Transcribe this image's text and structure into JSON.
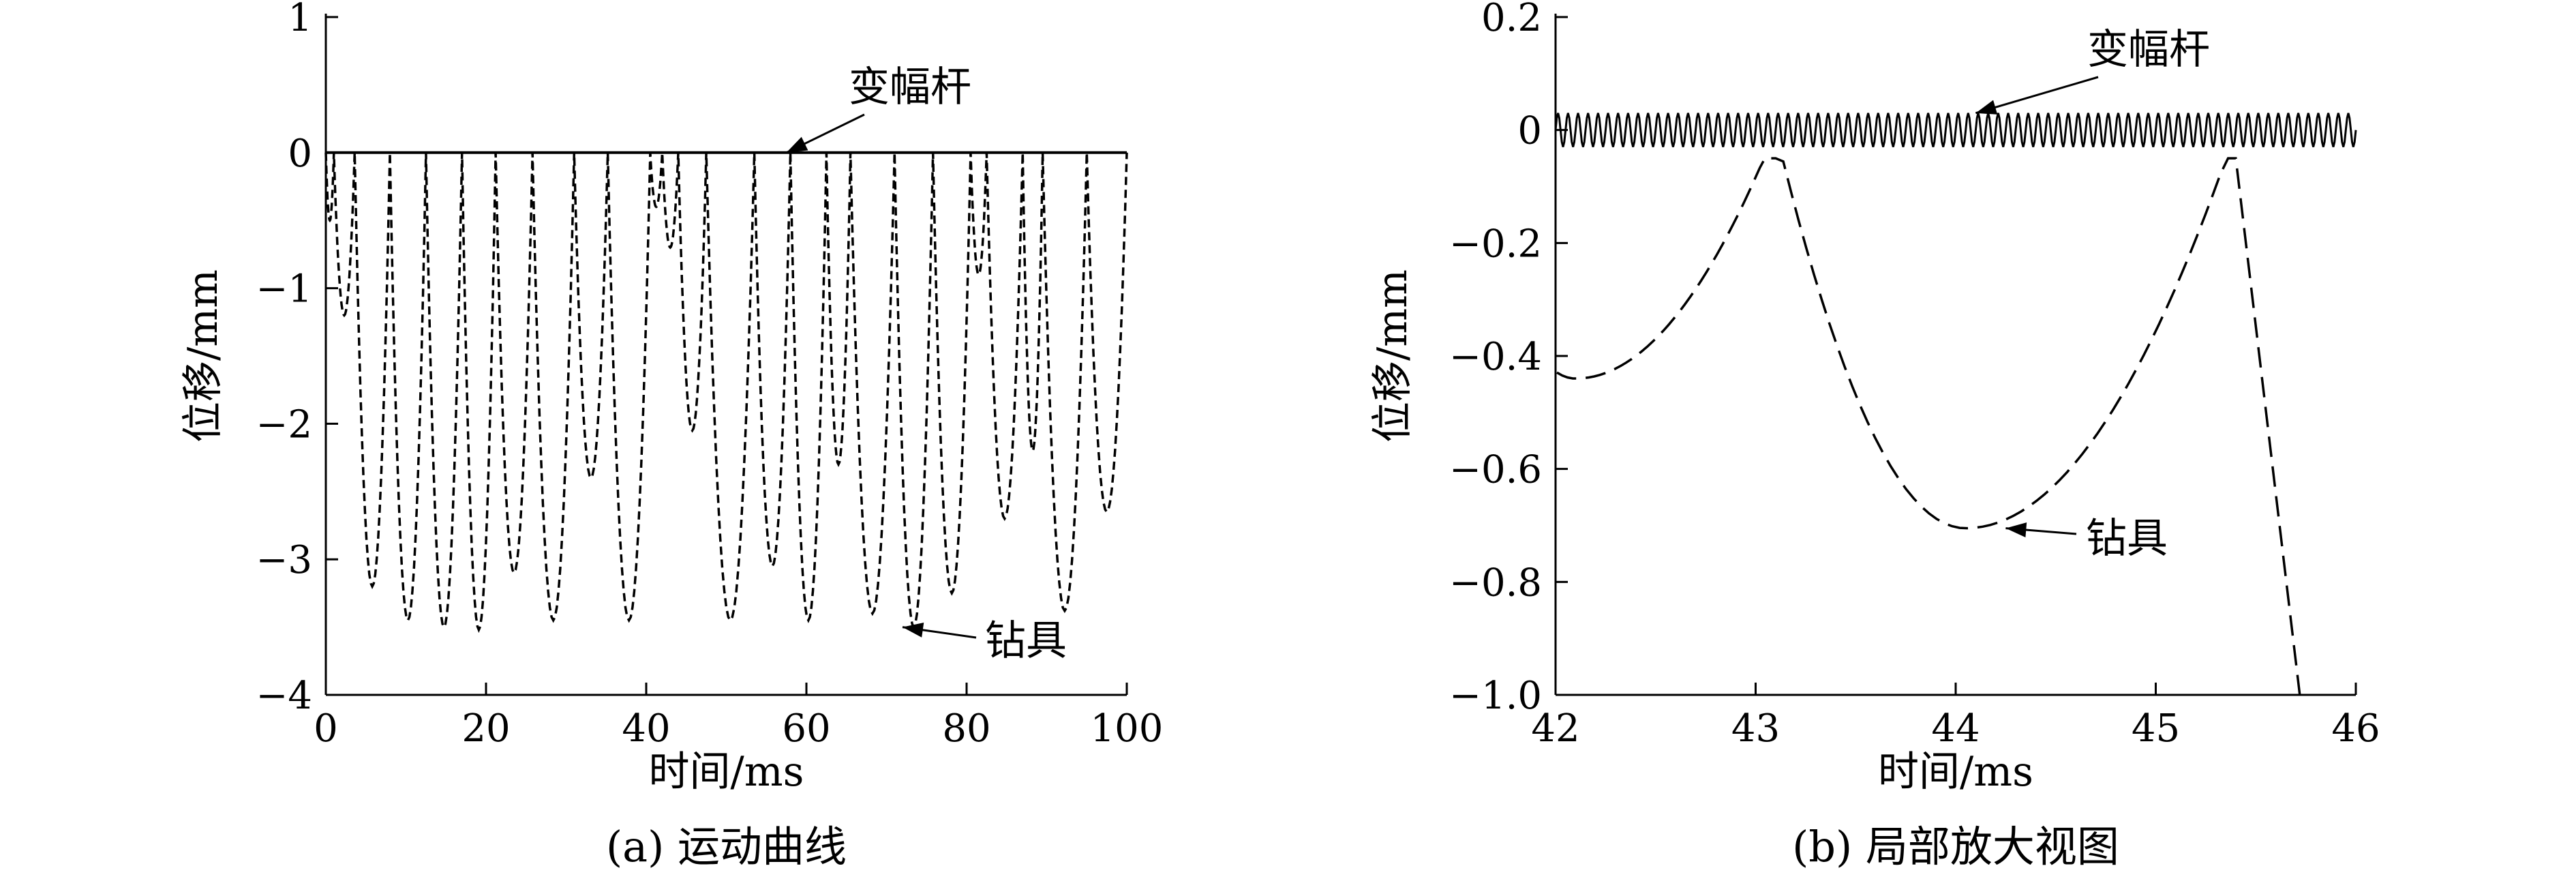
{
  "chart_data": [
    {
      "id": "a",
      "type": "line",
      "caption": "(a) 运动曲线",
      "xlabel": "时间/ms",
      "ylabel": "位移/mm",
      "xlim": [
        0,
        100
      ],
      "ylim": [
        -4,
        1
      ],
      "xticks": [
        0,
        20,
        40,
        60,
        80,
        100
      ],
      "yticks": [
        1,
        0,
        -1,
        -2,
        -3,
        -4
      ],
      "xtick_labels": [
        "0",
        "20",
        "40",
        "60",
        "80",
        "100"
      ],
      "ytick_labels": [
        "1",
        "0",
        "−1",
        "−2",
        "−3",
        "−4"
      ],
      "grid": false,
      "series": [
        {
          "name": "变幅杆",
          "style": "solid",
          "x": [
            0,
            100
          ],
          "y": [
            0,
            0
          ]
        },
        {
          "name": "钻具",
          "style": "dotted-dashed",
          "bounces": [
            [
              0.0,
              1.0,
              -0.5
            ],
            [
              1.0,
              3.6,
              -1.2
            ],
            [
              3.6,
              8.0,
              -3.2
            ],
            [
              8.0,
              12.5,
              -3.45
            ],
            [
              12.5,
              17.0,
              -3.5
            ],
            [
              17.0,
              21.2,
              -3.52
            ],
            [
              21.2,
              25.8,
              -3.1
            ],
            [
              25.8,
              31.0,
              -3.45
            ],
            [
              31.0,
              35.2,
              -2.4
            ],
            [
              35.2,
              40.5,
              -3.45
            ],
            [
              40.5,
              42.0,
              -0.4
            ],
            [
              42.0,
              44.0,
              -0.7
            ],
            [
              44.0,
              47.5,
              -2.05
            ],
            [
              47.5,
              53.5,
              -3.45
            ],
            [
              53.5,
              58.0,
              -3.05
            ],
            [
              58.0,
              62.5,
              -3.45
            ],
            [
              62.5,
              65.5,
              -2.3
            ],
            [
              65.5,
              71.0,
              -3.4
            ],
            [
              71.0,
              75.8,
              -3.5
            ],
            [
              75.8,
              80.5,
              -3.25
            ],
            [
              80.5,
              82.5,
              -0.9
            ],
            [
              82.5,
              87.0,
              -2.7
            ],
            [
              87.0,
              89.5,
              -2.2
            ],
            [
              89.5,
              95.0,
              -3.38
            ],
            [
              95.0,
              100.0,
              -2.65
            ]
          ]
        }
      ],
      "annotations": [
        {
          "text": "变幅杆",
          "target_x": 57.5,
          "target_y": 0
        },
        {
          "text": "钻具",
          "target_x": 72.0,
          "target_y": -3.5
        }
      ]
    },
    {
      "id": "b",
      "type": "line",
      "caption": "(b) 局部放大视图",
      "xlabel": "时间/ms",
      "ylabel": "位移/mm",
      "xlim": [
        42,
        46
      ],
      "ylim": [
        -1.0,
        0.2
      ],
      "xticks": [
        42,
        43,
        44,
        45,
        46
      ],
      "yticks": [
        0.2,
        0,
        -0.2,
        -0.4,
        -0.6,
        -0.8,
        -1.0
      ],
      "xtick_labels": [
        "42",
        "43",
        "44",
        "45",
        "46"
      ],
      "ytick_labels": [
        "0.2",
        "0",
        "−0.2",
        "−0.4",
        "−0.6",
        "−0.8",
        "−1.0"
      ],
      "grid": false,
      "series": [
        {
          "name": "变幅杆",
          "style": "solid-oscillation",
          "amplitude": 0.03,
          "cycles": 80,
          "x_range": [
            42,
            46
          ]
        },
        {
          "name": "钻具",
          "style": "dashed",
          "arcs": [
            {
              "x0": 41.5,
              "x1": 43.1,
              "y_min": -0.44,
              "x_min": 42.1
            },
            {
              "x0": 43.1,
              "x1": 45.4,
              "y_min": -0.705,
              "x_min": 44.05
            }
          ],
          "fall": {
            "x0": 45.4,
            "x1": 45.72,
            "y0": -0.05,
            "y1": -1.0
          }
        }
      ],
      "annotations": [
        {
          "text": "变幅杆",
          "target_x": 44.1,
          "target_y": 0.03
        },
        {
          "text": "钻具",
          "target_x": 44.25,
          "target_y": -0.705
        }
      ]
    }
  ]
}
